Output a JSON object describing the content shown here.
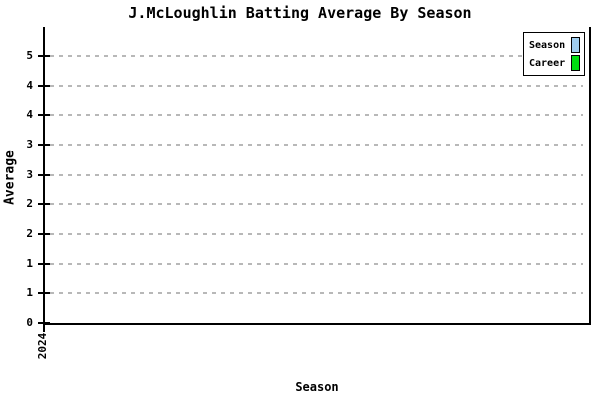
{
  "chart_data": {
    "type": "bar",
    "title": "J.McLoughlin Batting Average By Season",
    "xlabel": "Season",
    "ylabel": "Average",
    "categories": [
      "2024"
    ],
    "x_tick_labels": [
      "2024"
    ],
    "y_tick_labels_bottom_to_top": [
      "0",
      "1",
      "1",
      "2",
      "2",
      "3",
      "3",
      "4",
      "4",
      "5"
    ],
    "ylim": [
      0,
      5
    ],
    "grid": "horizontal-dashed",
    "gridline_color": "#b8b8b8",
    "axis_color": "#000000",
    "background_color": "#ffffff",
    "legend_position": "top-right",
    "series": [
      {
        "name": "Season",
        "color": "#9fcdee",
        "values": []
      },
      {
        "name": "Career",
        "color": "#00dd11",
        "values": []
      }
    ]
  },
  "legend": {
    "items": [
      {
        "label": "Season",
        "color": "#9fcdee",
        "swatch": "season-swatch"
      },
      {
        "label": "Career",
        "color": "#00dd11",
        "swatch": "career-swatch"
      }
    ]
  }
}
